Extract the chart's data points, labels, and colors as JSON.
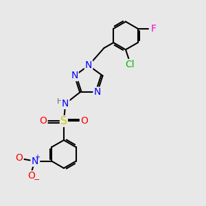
{
  "background_color": "#e8e8e8",
  "bond_color": "#000000",
  "bond_width": 1.5,
  "atom_colors": {
    "N": "#0000ff",
    "O": "#ff0000",
    "S": "#cccc00",
    "Cl": "#00bb00",
    "F": "#ff00cc",
    "H": "#666666",
    "C": "#000000"
  },
  "font_size": 9
}
